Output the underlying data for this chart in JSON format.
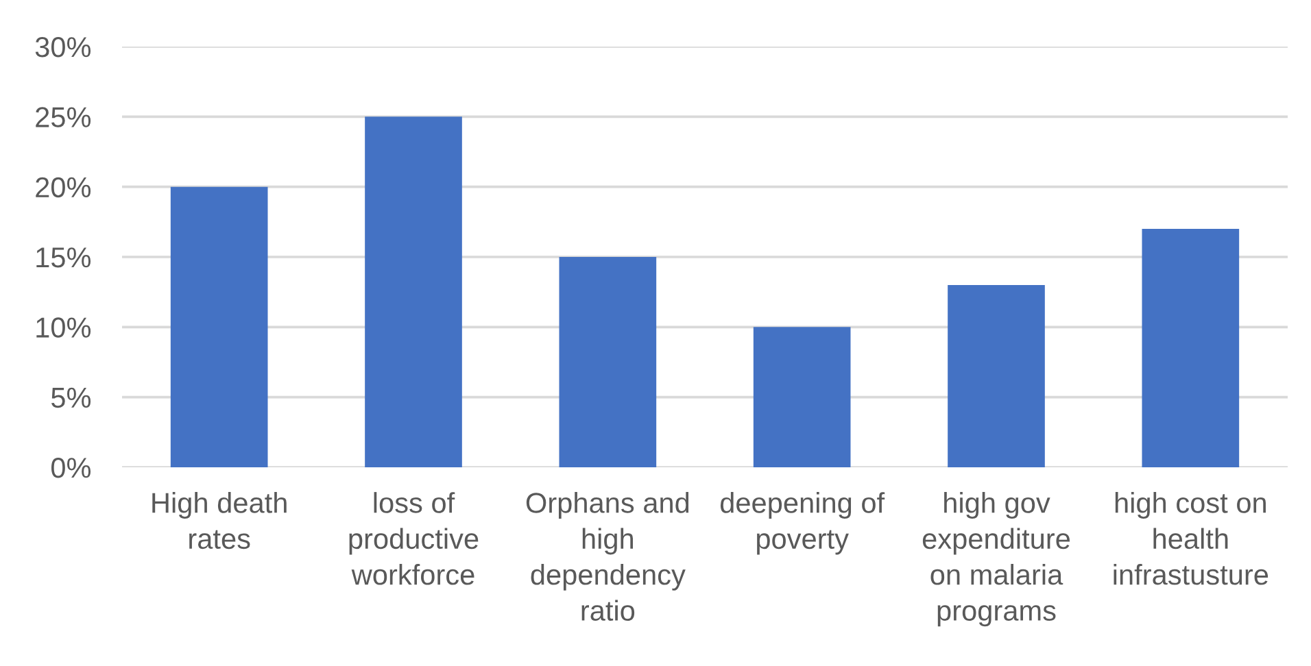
{
  "chart_data": {
    "type": "bar",
    "categories": [
      "High death rates",
      "loss of productive workforce",
      "Orphans and high dependency ratio",
      "deepening of poverty",
      "high gov expenditure on malaria programs",
      "high cost on health infrastusture"
    ],
    "values": [
      20,
      25,
      15,
      10,
      13,
      17
    ],
    "color": "#4472c4",
    "ylim": [
      0,
      30
    ],
    "yticks": [
      {
        "value": 0,
        "label": "0%"
      },
      {
        "value": 5,
        "label": "5%"
      },
      {
        "value": 10,
        "label": "10%"
      },
      {
        "value": 15,
        "label": "15%"
      },
      {
        "value": 20,
        "label": "20%"
      },
      {
        "value": 25,
        "label": "25%"
      },
      {
        "value": 30,
        "label": "30%"
      }
    ],
    "grid": "y"
  }
}
